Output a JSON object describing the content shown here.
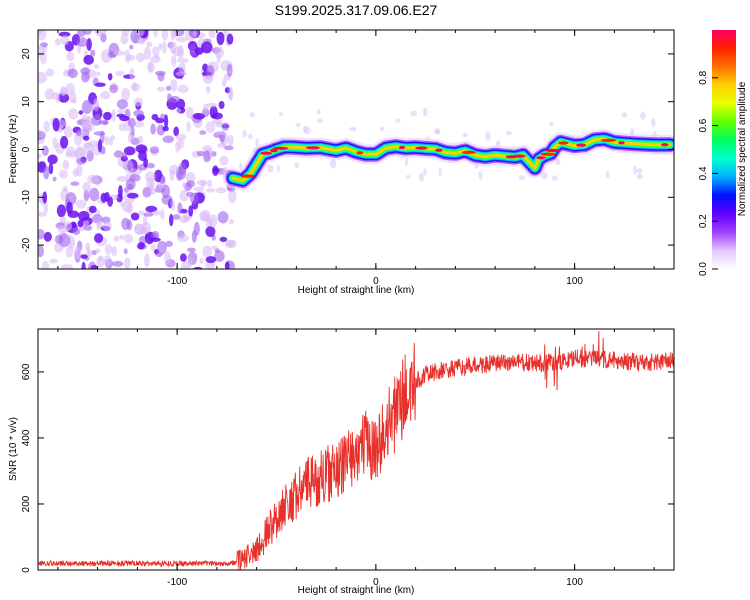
{
  "title": "S199.2025.317.09.06.E27",
  "chart_data": [
    {
      "type": "heatmap",
      "panel": "spectrogram",
      "xlabel": "Height of straight line (km)",
      "ylabel": "Frequency (Hz)",
      "xlim": [
        -170,
        150
      ],
      "ylim": [
        -25,
        25
      ],
      "xticks": [
        -100,
        0,
        100
      ],
      "xtick_labels": [
        "-100",
        "0",
        "100"
      ],
      "yticks": [
        -20,
        -10,
        0,
        10,
        20
      ],
      "ytick_labels": [
        "-20",
        "-10",
        "0",
        "10",
        "20"
      ],
      "noise_region_x": [
        -170,
        -72
      ],
      "ridge": {
        "x": [
          -72,
          -67,
          -63,
          -60,
          -57,
          -53,
          -50,
          -46,
          -42,
          -35,
          -28,
          -20,
          -15,
          -10,
          -5,
          0,
          5,
          10,
          15,
          20,
          25,
          30,
          35,
          40,
          45,
          50,
          55,
          60,
          65,
          70,
          74,
          78,
          80,
          82,
          85,
          88,
          90,
          93,
          96,
          100,
          105,
          110,
          115,
          120,
          130,
          140,
          148
        ],
        "freq": [
          -6,
          -6.5,
          -5,
          -3,
          -1,
          -0.5,
          0,
          0.5,
          0.5,
          0.3,
          0.4,
          -0.2,
          0.3,
          -0.5,
          -1,
          -1,
          0.3,
          0.6,
          0.3,
          0.4,
          0.2,
          0.1,
          -0.6,
          -0.8,
          -0.3,
          -1.2,
          -1.5,
          -1.2,
          -1.4,
          -1.6,
          -1.2,
          -3,
          -3.9,
          -2,
          -1.2,
          -0.8,
          0.5,
          1.5,
          1.2,
          0.8,
          1.0,
          2.0,
          2.2,
          1.5,
          1.2,
          1.0,
          1.0
        ]
      },
      "colorbar": {
        "label": "Normalized spectral amplitude",
        "range": [
          0,
          1
        ],
        "ticks": [
          0.0,
          0.2,
          0.4,
          0.6,
          0.8
        ],
        "tick_labels": [
          "0.0",
          "0.2",
          "0.4",
          "0.6",
          "0.8"
        ],
        "colors": [
          "#ffffff",
          "#e4c8ff",
          "#a040ff",
          "#6000ff",
          "#0010ff",
          "#00b0ff",
          "#00ffd0",
          "#00ff60",
          "#60ff00",
          "#e8ff00",
          "#ffd000",
          "#ff7000",
          "#ff2000",
          "#ff0060"
        ]
      }
    },
    {
      "type": "line",
      "panel": "snr",
      "xlabel": "Height of straight line (km)",
      "ylabel": "SNR (10 * v/v)",
      "xlim": [
        -170,
        150
      ],
      "ylim": [
        0,
        730
      ],
      "xticks": [
        -100,
        0,
        100
      ],
      "xtick_labels": [
        "-100",
        "0",
        "100"
      ],
      "yticks": [
        0,
        200,
        400,
        600
      ],
      "ytick_labels": [
        "0",
        "200",
        "400",
        "600"
      ],
      "series": [
        {
          "name": "SNR",
          "color": "#e8302a",
          "x_anchor": [
            -170,
            -75,
            -70,
            -65,
            -60,
            -55,
            -50,
            -45,
            -40,
            -35,
            -30,
            -25,
            -20,
            -15,
            -10,
            -5,
            0,
            5,
            10,
            15,
            20,
            25,
            30,
            35,
            40,
            45,
            50,
            60,
            70,
            80,
            90,
            100,
            110,
            120,
            130,
            140,
            150
          ],
          "y_anchor": [
            20,
            20,
            22,
            40,
            60,
            110,
            160,
            200,
            230,
            260,
            270,
            290,
            300,
            330,
            360,
            380,
            370,
            420,
            480,
            530,
            570,
            590,
            600,
            605,
            610,
            615,
            620,
            625,
            630,
            625,
            630,
            640,
            640,
            635,
            630,
            630,
            635
          ],
          "noise_amplitude": "proportional",
          "samples": 1600
        }
      ]
    }
  ]
}
